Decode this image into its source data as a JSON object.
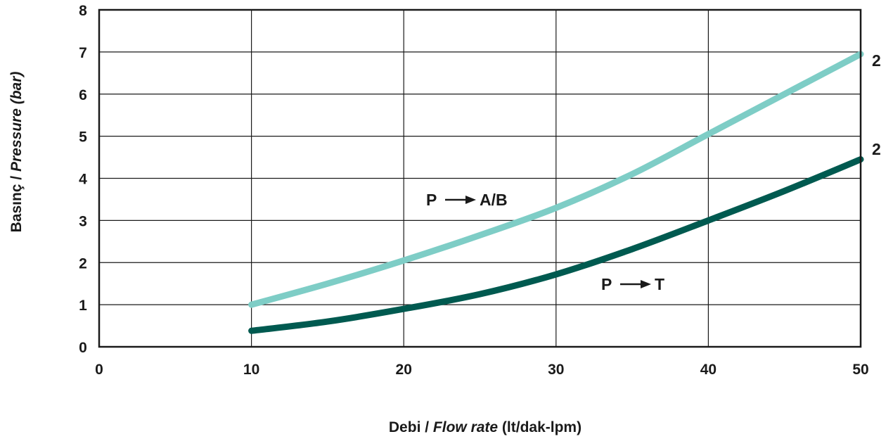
{
  "chart_data": {
    "type": "line",
    "xlabel": {
      "prefix": "Debi / ",
      "italic": "Flow rate",
      "suffix": " (lt/dak-lpm)"
    },
    "ylabel": {
      "prefix": "Basınç / ",
      "italic": "Pressure",
      "suffix": "  (bar)"
    },
    "xlim": [
      0,
      50
    ],
    "ylim": [
      0,
      8
    ],
    "x_ticks": [
      0,
      10,
      20,
      30,
      40,
      50
    ],
    "y_ticks": [
      0,
      1,
      2,
      3,
      4,
      5,
      6,
      7,
      8
    ],
    "grid": true,
    "series": [
      {
        "name": "P → A/B",
        "color": "#7ecdc6",
        "end_label": "2",
        "x": [
          10,
          15,
          20,
          25,
          30,
          35,
          40,
          45,
          50
        ],
        "y": [
          1.0,
          1.5,
          2.05,
          2.65,
          3.3,
          4.1,
          5.05,
          6.0,
          6.95
        ]
      },
      {
        "name": "P → T",
        "color": "#005a50",
        "end_label": "2",
        "x": [
          10,
          15,
          20,
          25,
          30,
          35,
          40,
          45,
          50
        ],
        "y": [
          0.38,
          0.6,
          0.9,
          1.25,
          1.72,
          2.32,
          3.0,
          3.7,
          4.45
        ]
      }
    ],
    "annotations": [
      {
        "lead": "P",
        "arrow": "→",
        "tail": "A/B"
      },
      {
        "lead": "P",
        "arrow": "→",
        "tail": "T"
      }
    ]
  }
}
